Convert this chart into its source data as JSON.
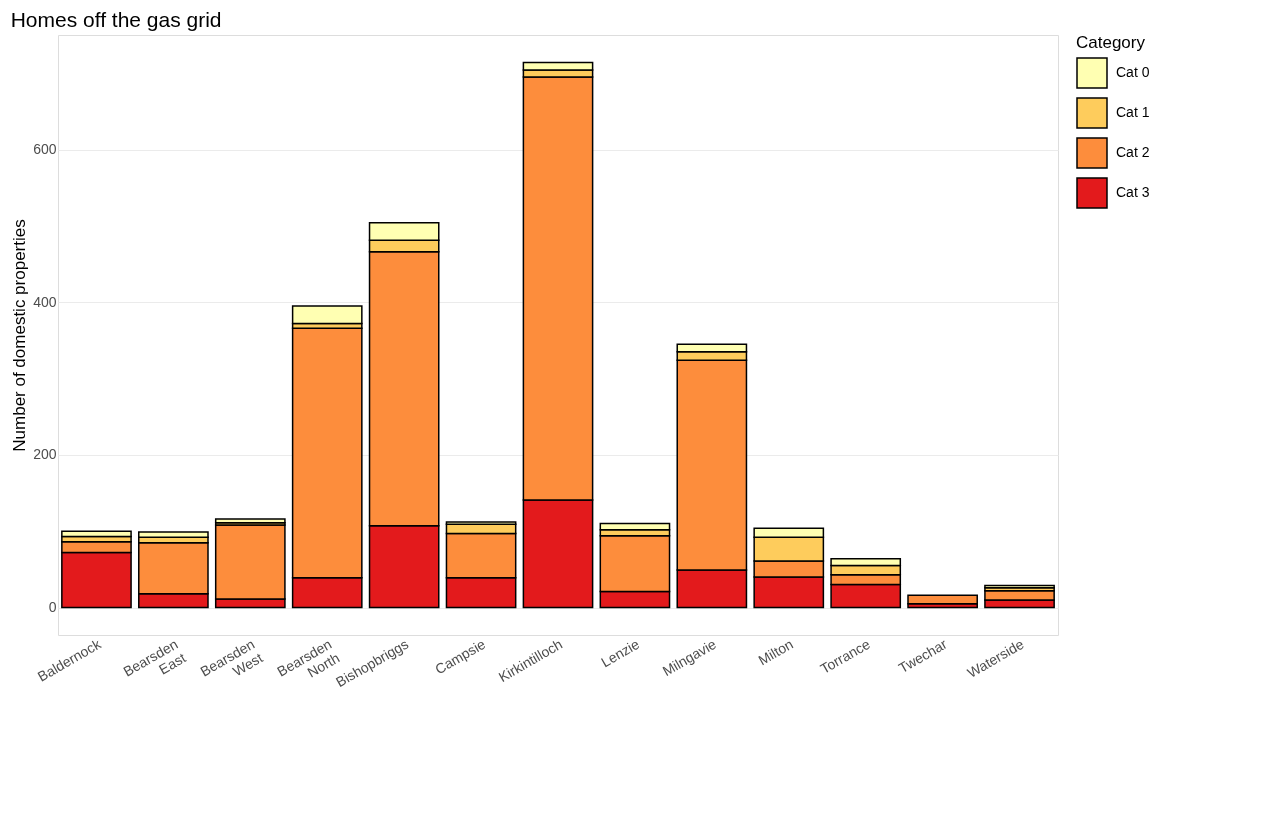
{
  "chart_data": {
    "type": "bar",
    "title": "Homes off the gas grid",
    "ylabel": "Number of domestic properties",
    "legend_title": "Category",
    "categories": [
      "Baldernock",
      "Bearsden\nEast",
      "Bearsden\nWest",
      "Bearsden\nNorth",
      "Bishopbriggs",
      "Campsie",
      "Kirkintilloch",
      "Lenzie",
      "Milngavie",
      "Milton",
      "Torrance",
      "Twechar",
      "Waterside"
    ],
    "stacked": true,
    "series": [
      {
        "name": "Cat 3",
        "color": "#e31a1c",
        "values": [
          72,
          18,
          11,
          39,
          107,
          39,
          141,
          21,
          49,
          40,
          30,
          5,
          10
        ]
      },
      {
        "name": "Cat 2",
        "color": "#fd8d3c",
        "values": [
          14,
          67,
          97,
          327,
          359,
          58,
          554,
          73,
          275,
          21,
          13,
          11,
          12
        ]
      },
      {
        "name": "Cat 1",
        "color": "#fecc5c",
        "values": [
          7,
          7,
          3,
          6,
          15,
          12,
          9,
          8,
          11,
          31,
          12,
          null,
          4
        ]
      },
      {
        "name": "Cat 0",
        "color": "#ffffb2",
        "values": [
          7,
          7,
          5,
          23,
          23,
          3,
          10,
          8,
          10,
          12,
          9,
          null,
          3
        ]
      }
    ],
    "ylim": [
      -36,
      750
    ],
    "yticks": [
      0,
      200,
      400,
      600
    ],
    "grid": "y",
    "legend": "right"
  }
}
